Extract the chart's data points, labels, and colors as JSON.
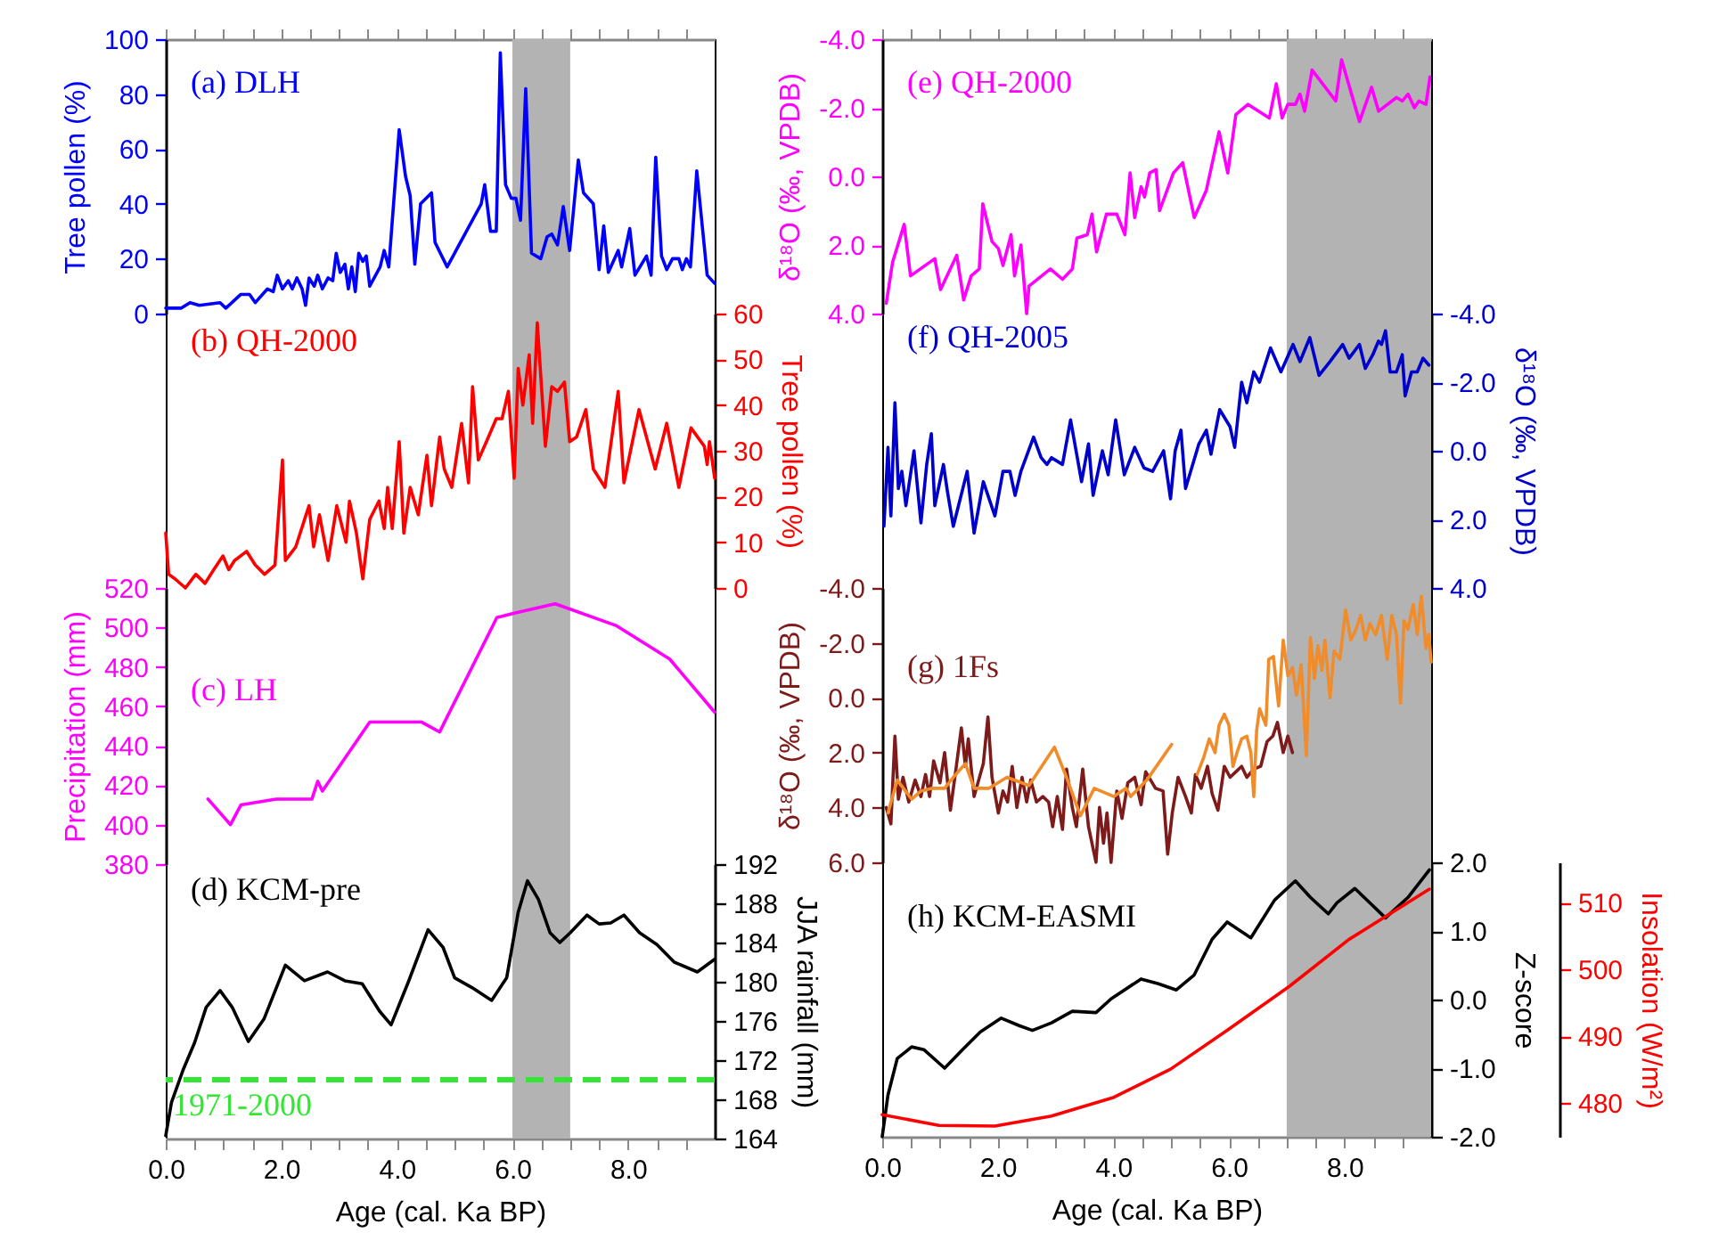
{
  "chart_data": [
    {
      "type": "line",
      "title": "(a) DLH",
      "ylabel": "Tree pollen (%)",
      "tick_labels": "y",
      "xlim": [
        0,
        9.5
      ],
      "ylim": [
        0,
        100
      ],
      "yticks": [
        0,
        20,
        40,
        60,
        80,
        100
      ],
      "xticks": [
        {
          "value": 0,
          "label": null
        },
        {
          "value": 0.5,
          "label": null
        },
        {
          "value": 1,
          "label": null
        },
        {
          "value": 1.5,
          "label": null
        },
        {
          "value": 2,
          "label": null
        },
        {
          "value": 2.5,
          "label": null
        },
        {
          "value": 3,
          "label": null
        },
        {
          "value": 3.5,
          "label": null
        },
        {
          "value": 4,
          "label": null
        },
        {
          "value": 4.5,
          "label": null
        },
        {
          "value": 5,
          "label": null
        },
        {
          "value": 5.5,
          "label": null
        },
        {
          "value": 6,
          "label": null
        },
        {
          "value": 6.5,
          "label": null
        },
        {
          "value": 7,
          "label": null
        },
        {
          "value": 7.5,
          "label": null
        },
        {
          "value": 8,
          "label": null
        },
        {
          "value": 8.5,
          "label": null
        },
        {
          "value": 9,
          "label": null
        }
      ],
      "bands": [
        {
          "axis": "x",
          "from": 6,
          "to": 7,
          "color": "#b3b3b3"
        }
      ],
      "x": [
        0,
        0.27,
        0.42,
        0.58,
        0.94,
        1.04,
        1.3,
        1.45,
        1.55,
        1.76,
        1.86,
        1.93,
        2.02,
        2.12,
        2.19,
        2.27,
        2.36,
        2.42,
        2.48,
        2.57,
        2.63,
        2.71,
        2.81,
        2.89,
        2.95,
        3.02,
        3.1,
        3.16,
        3.22,
        3.28,
        3.34,
        3.41,
        3.47,
        3.53,
        3.71,
        3.78,
        3.86,
        4.04,
        4.15,
        4.23,
        4.31,
        4.41,
        4.6,
        4.66,
        4.87,
        5.46,
        5.52,
        5.62,
        5.72,
        5.79,
        5.88,
        5.98,
        6.06,
        6.14,
        6.23,
        6.33,
        6.49,
        6.6,
        6.68,
        6.78,
        6.88,
        6.99,
        7.14,
        7.23,
        7.4,
        7.5,
        7.58,
        7.66,
        7.83,
        7.89,
        8.03,
        8.12,
        8.32,
        8.4,
        8.48,
        8.58,
        8.67,
        8.77,
        8.88,
        8.94,
        9.01,
        9.08,
        9.19,
        9.37,
        9.5
      ],
      "series": [
        {
          "color": "#0000ff",
          "axis": "y",
          "values": [
            2,
            2,
            4,
            3,
            4,
            2,
            7,
            7,
            4,
            9,
            8,
            14,
            9,
            12,
            9,
            13,
            9,
            3,
            13,
            10,
            14,
            9,
            13,
            12,
            22,
            15,
            18,
            9,
            17,
            8,
            22,
            19,
            21,
            10,
            17,
            23,
            17,
            67,
            50,
            43,
            18,
            40,
            44,
            26,
            17,
            40,
            47,
            30,
            30,
            95,
            47,
            42,
            42,
            34,
            82,
            22,
            20,
            28,
            29,
            25,
            39,
            23,
            56,
            44,
            40,
            16,
            32,
            15,
            23,
            17,
            31,
            14,
            21,
            14,
            57,
            21,
            16,
            20,
            20,
            16,
            20,
            17,
            52,
            14,
            11
          ]
        }
      ]
    },
    {
      "type": "line",
      "title": "(b) QH-2000",
      "y2label": "Tree pollen (%)",
      "tick_labels": "y2",
      "xlim": [
        0,
        9.5
      ],
      "y2lim": [
        0,
        60
      ],
      "y2ticks": [
        0,
        10,
        20,
        30,
        40,
        50,
        60
      ],
      "bands": [
        {
          "axis": "x",
          "from": 6,
          "to": 7,
          "color": "#b3b3b3"
        }
      ],
      "x": [
        0,
        0.05,
        0.16,
        0.34,
        0.52,
        0.68,
        0.83,
        0.99,
        1.09,
        1.19,
        1.4,
        1.55,
        1.71,
        1.89,
        2.02,
        2.07,
        2.25,
        2.48,
        2.56,
        2.66,
        2.81,
        2.96,
        3.12,
        3.18,
        3.3,
        3.41,
        3.53,
        3.69,
        3.78,
        3.84,
        3.92,
        4.04,
        4.12,
        4.23,
        4.37,
        4.52,
        4.6,
        4.74,
        4.82,
        4.95,
        5.12,
        5.24,
        5.31,
        5.41,
        5.55,
        5.72,
        5.82,
        5.93,
        6.03,
        6.1,
        6.18,
        6.29,
        6.35,
        6.43,
        6.57,
        6.68,
        6.78,
        6.9,
        6.99,
        7.11,
        7.27,
        7.4,
        7.6,
        7.83,
        7.93,
        8.19,
        8.47,
        8.67,
        8.88,
        9.09,
        9.32,
        9.37,
        9.41,
        9.5
      ],
      "series": [
        {
          "color": "#ff0000",
          "axis": "y2",
          "values": [
            12,
            3,
            2,
            0,
            3,
            1,
            4,
            7,
            4,
            6,
            8,
            5,
            3,
            5,
            28,
            6,
            9,
            18,
            9,
            16,
            6,
            18,
            10,
            19,
            12,
            2,
            15,
            19,
            13,
            22,
            13,
            32,
            12,
            22,
            16,
            29,
            18,
            33,
            26,
            22,
            36,
            23,
            44,
            28,
            32,
            37,
            37,
            43,
            24,
            48,
            40,
            51,
            36,
            58,
            31,
            44,
            43,
            45,
            32,
            33,
            39,
            26,
            22,
            43,
            23,
            39,
            26,
            36,
            22,
            35,
            31,
            27,
            32,
            24
          ]
        }
      ]
    },
    {
      "type": "line",
      "title": "(c) LH",
      "ylabel": "Precipitation (mm)",
      "tick_labels": "y",
      "xlim": [
        0,
        9.5
      ],
      "ylim": [
        380,
        520
      ],
      "yticks": [
        380,
        400,
        420,
        440,
        460,
        480,
        500,
        520
      ],
      "bands": [
        {
          "axis": "x",
          "from": 6,
          "to": 7,
          "color": "#b3b3b3"
        }
      ],
      "x": [
        0.73,
        1.12,
        1.3,
        1.91,
        2.53,
        2.63,
        2.71,
        3.53,
        4.43,
        4.74,
        5.73,
        6.0,
        6.74,
        7.79,
        8.72,
        9.5
      ],
      "series": [
        {
          "color": "#ff00ff",
          "axis": "y",
          "values": [
            413,
            400,
            410,
            413,
            413,
            422,
            417,
            452,
            452,
            447,
            505,
            507,
            512,
            501,
            484,
            457
          ]
        }
      ]
    },
    {
      "type": "line",
      "title": "(d) KCM-pre",
      "xlabel": "Age (cal. Ka BP)",
      "y2label": "JJA rainfall (mm)",
      "xlim": [
        0,
        9.5
      ],
      "y2lim": [
        164,
        192
      ],
      "y2ticks": [
        164,
        168,
        172,
        176,
        180,
        184,
        188,
        192
      ],
      "xticks": [
        {
          "value": 0,
          "label": "0.0"
        },
        {
          "value": 0.5,
          "label": null
        },
        {
          "value": 1,
          "label": null
        },
        {
          "value": 1.5,
          "label": null
        },
        {
          "value": 2,
          "label": "2.0"
        },
        {
          "value": 2.5,
          "label": null
        },
        {
          "value": 3,
          "label": null
        },
        {
          "value": 3.5,
          "label": null
        },
        {
          "value": 4,
          "label": "4.0"
        },
        {
          "value": 4.5,
          "label": null
        },
        {
          "value": 5,
          "label": null
        },
        {
          "value": 5.5,
          "label": null
        },
        {
          "value": 6,
          "label": "6.0"
        },
        {
          "value": 6.5,
          "label": null
        },
        {
          "value": 7,
          "label": null
        },
        {
          "value": 7.5,
          "label": null
        },
        {
          "value": 8,
          "label": "8.0"
        },
        {
          "value": 8.5,
          "label": null
        },
        {
          "value": 9,
          "label": null
        }
      ],
      "bands": [
        {
          "axis": "x",
          "from": 6,
          "to": 7,
          "color": "#b3b3b3"
        }
      ],
      "ref_lines": [
        {
          "axis": "y2",
          "value": 170,
          "color": "#33e633",
          "line_style": "dashed"
        }
      ],
      "annotations": [
        "1971-2000"
      ],
      "x": [
        0,
        0.1,
        0.3,
        0.5,
        0.7,
        0.94,
        1.15,
        1.43,
        1.7,
        2.07,
        2.4,
        2.8,
        3.1,
        3.4,
        3.7,
        3.9,
        4.2,
        4.54,
        4.8,
        5.0,
        5.3,
        5.64,
        5.9,
        6.1,
        6.26,
        6.45,
        6.65,
        6.82,
        7.0,
        7.29,
        7.5,
        7.7,
        7.93,
        8.2,
        8.5,
        8.8,
        9.2,
        9.5
      ],
      "series": [
        {
          "color": "#000000",
          "axis": "y2",
          "values": [
            164.3,
            167.7,
            171,
            173.8,
            177.4,
            179.1,
            177.4,
            173.9,
            176.2,
            181.7,
            180.1,
            181,
            180.1,
            179.8,
            177,
            175.6,
            180,
            185.3,
            183.5,
            180.4,
            179.4,
            178.1,
            180.4,
            187.1,
            190.3,
            188.4,
            185,
            184,
            185,
            186.8,
            185.9,
            186,
            186.8,
            185,
            183.8,
            182,
            181,
            182.3
          ]
        }
      ]
    },
    {
      "type": "line",
      "title": "(e) QH-2000",
      "ylabel": "δ¹⁸O (‰, VPDB)",
      "tick_labels": "y",
      "xlim": [
        0,
        9.5
      ],
      "ylim": [
        4,
        -4
      ],
      "yticks": [
        {
          "value": -4,
          "label": "-4.0"
        },
        {
          "value": -2,
          "label": "-2.0"
        },
        {
          "value": 0,
          "label": "0.0"
        },
        {
          "value": 2,
          "label": "2.0"
        },
        {
          "value": 4,
          "label": "4.0"
        }
      ],
      "xticks": [
        {
          "value": 0,
          "label": null
        },
        {
          "value": 0.5,
          "label": null
        },
        {
          "value": 1,
          "label": null
        },
        {
          "value": 1.5,
          "label": null
        },
        {
          "value": 2,
          "label": null
        },
        {
          "value": 2.5,
          "label": null
        },
        {
          "value": 3,
          "label": null
        },
        {
          "value": 3.5,
          "label": null
        },
        {
          "value": 4,
          "label": null
        },
        {
          "value": 4.5,
          "label": null
        },
        {
          "value": 5,
          "label": null
        },
        {
          "value": 5.5,
          "label": null
        },
        {
          "value": 6,
          "label": null
        },
        {
          "value": 6.5,
          "label": null
        },
        {
          "value": 7,
          "label": null
        },
        {
          "value": 7.5,
          "label": null
        },
        {
          "value": 8,
          "label": null
        },
        {
          "value": 8.5,
          "label": null
        },
        {
          "value": 9,
          "label": null
        }
      ],
      "bands": [
        {
          "axis": "x",
          "from": 7,
          "to": 9.5,
          "color": "#b3b3b3"
        }
      ],
      "x": [
        0.07,
        0.18,
        0.38,
        0.49,
        0.91,
        1.01,
        1.29,
        1.41,
        1.54,
        1.68,
        1.74,
        1.9,
        2.01,
        2.09,
        2.23,
        2.29,
        2.4,
        2.5,
        2.54,
        2.91,
        3.12,
        3.29,
        3.37,
        3.55,
        3.63,
        3.71,
        3.88,
        4.06,
        4.2,
        4.29,
        4.37,
        4.48,
        4.54,
        4.63,
        4.74,
        4.8,
        5.04,
        5.2,
        5.4,
        5.61,
        5.83,
        5.98,
        6.12,
        6.33,
        6.7,
        6.82,
        6.92,
        7.02,
        7.15,
        7.23,
        7.31,
        7.44,
        7.85,
        7.95,
        8.26,
        8.47,
        8.59,
        8.9,
        9.0,
        9.1,
        9.21,
        9.29,
        9.41,
        9.48
      ],
      "series": [
        {
          "color": "#ff00ff",
          "axis": "y",
          "values": [
            3.7,
            2.5,
            1.4,
            2.9,
            2.4,
            3.3,
            2.3,
            3.6,
            2.9,
            2.7,
            0.8,
            1.9,
            2.1,
            2.6,
            1.7,
            2.9,
            2.0,
            4.0,
            3.2,
            2.7,
            3.0,
            2.7,
            1.8,
            1.7,
            1.1,
            2.2,
            1.1,
            1.1,
            1.7,
            -0.1,
            1.2,
            0.3,
            0.6,
            -0.1,
            -0.2,
            1.0,
            -0.1,
            -0.4,
            1.2,
            0.4,
            -1.3,
            -0.1,
            -1.8,
            -2.1,
            -1.7,
            -2.7,
            -1.7,
            -2.1,
            -2.1,
            -2.4,
            -1.9,
            -3.1,
            -2.2,
            -3.4,
            -1.6,
            -2.6,
            -1.9,
            -2.3,
            -2.2,
            -2.4,
            -2.0,
            -2.2,
            -2.1,
            -2.9
          ]
        }
      ]
    },
    {
      "type": "line",
      "title": "(f) QH-2005",
      "y2label": "δ¹⁸O (‰, VPDB)",
      "tick_labels": "y2",
      "xlim": [
        0,
        9.5
      ],
      "y2lim": [
        4,
        -4
      ],
      "y2ticks": [
        {
          "value": -4,
          "label": "-4.0"
        },
        {
          "value": -2,
          "label": "-2.0"
        },
        {
          "value": 0,
          "label": "0.0"
        },
        {
          "value": 2,
          "label": "2.0"
        },
        {
          "value": 4,
          "label": "4.0"
        }
      ],
      "bands": [
        {
          "axis": "x",
          "from": 7,
          "to": 9.5,
          "color": "#b3b3b3"
        }
      ],
      "x": [
        0.03,
        0.1,
        0.15,
        0.22,
        0.28,
        0.34,
        0.41,
        0.55,
        0.67,
        0.77,
        0.85,
        0.91,
        1.06,
        1.13,
        1.23,
        1.47,
        1.59,
        1.75,
        1.95,
        2.09,
        2.21,
        2.3,
        2.4,
        2.62,
        2.75,
        2.85,
        2.93,
        3.12,
        3.26,
        3.45,
        3.57,
        3.65,
        3.81,
        3.91,
        4.04,
        4.19,
        4.37,
        4.53,
        4.68,
        4.87,
        4.99,
        5.07,
        5.17,
        5.25,
        5.48,
        5.61,
        5.69,
        5.84,
        6.02,
        6.1,
        6.22,
        6.31,
        6.43,
        6.53,
        6.72,
        6.9,
        7.11,
        7.23,
        7.4,
        7.56,
        7.75,
        7.97,
        8.08,
        8.26,
        8.36,
        8.49,
        8.59,
        8.64,
        8.71,
        8.79,
        8.9,
        9.0,
        9.05,
        9.16,
        9.26,
        9.36,
        9.46
      ],
      "series": [
        {
          "color": "#0000cc",
          "axis": "y2",
          "values": [
            2.2,
            -0.1,
            1.9,
            -1.4,
            1.1,
            0.6,
            1.6,
            0.0,
            2.1,
            0.4,
            -0.5,
            1.6,
            0.4,
            1.2,
            2.2,
            0.6,
            2.4,
            0.9,
            1.9,
            0.6,
            0.6,
            1.3,
            0.6,
            -0.4,
            0.2,
            0.4,
            0.2,
            0.4,
            -0.9,
            0.9,
            -0.2,
            1.3,
            0.0,
            0.7,
            -0.9,
            0.7,
            -0.1,
            0.5,
            0.6,
            0.0,
            1.4,
            0.0,
            -0.6,
            1.1,
            -0.2,
            -0.6,
            0.1,
            -1.2,
            -0.7,
            -0.1,
            -2.0,
            -1.4,
            -2.3,
            -2.0,
            -3.0,
            -2.3,
            -3.1,
            -2.6,
            -3.3,
            -2.2,
            -2.6,
            -3.1,
            -2.7,
            -3.1,
            -2.4,
            -2.8,
            -3.2,
            -3.1,
            -3.5,
            -2.3,
            -2.3,
            -2.8,
            -1.6,
            -2.3,
            -2.3,
            -2.7,
            -2.5
          ]
        }
      ]
    },
    {
      "type": "line",
      "title": "(g) 1Fs",
      "ylabel": "δ¹⁸O (‰, VPDB)",
      "tick_labels": "y",
      "xlim": [
        0,
        9.5
      ],
      "ylim": [
        6,
        -4
      ],
      "yticks": [
        {
          "value": -4,
          "label": "-4.0"
        },
        {
          "value": -2,
          "label": "-2.0"
        },
        {
          "value": 0,
          "label": "0.0"
        },
        {
          "value": 2,
          "label": "2.0"
        },
        {
          "value": 4,
          "label": "4.0"
        },
        {
          "value": 6,
          "label": "6.0"
        }
      ],
      "bands": [
        {
          "axis": "x",
          "from": 7,
          "to": 9.5,
          "color": "#b3b3b3"
        }
      ],
      "series": [
        {
          "color": "#7f1a1a",
          "axis": "y",
          "x": [
            0.07,
            0.15,
            0.22,
            0.28,
            0.36,
            0.46,
            0.57,
            0.67,
            0.75,
            0.82,
            0.89,
            1.0,
            1.08,
            1.18,
            1.27,
            1.37,
            1.44,
            1.49,
            1.59,
            1.75,
            1.83,
            1.9,
            2.01,
            2.09,
            2.17,
            2.25,
            2.33,
            2.42,
            2.5,
            2.57,
            2.67,
            2.78,
            2.88,
            2.95,
            3.03,
            3.12,
            3.19,
            3.29,
            3.36,
            3.47,
            3.57,
            3.7,
            3.76,
            3.83,
            3.89,
            3.96,
            4.06,
            4.15,
            4.25,
            4.37,
            4.48,
            4.56,
            4.73,
            4.86,
            4.94,
            5.02,
            5.12,
            5.25,
            5.35,
            5.42,
            5.52,
            5.63,
            5.71,
            5.81,
            5.92,
            6.02,
            6.12,
            6.22,
            6.31,
            6.43,
            6.55,
            6.66,
            6.76,
            6.84,
            6.94,
            7.02,
            7.1
          ],
          "values": [
            4.0,
            4.6,
            1.4,
            3.7,
            2.9,
            3.8,
            3.0,
            3.6,
            2.8,
            3.6,
            2.3,
            3.1,
            2.0,
            4.1,
            2.7,
            1.1,
            2.5,
            1.5,
            3.6,
            2.4,
            0.7,
            2.9,
            4.2,
            3.4,
            3.8,
            2.5,
            4.0,
            2.9,
            3.8,
            3.0,
            3.8,
            3.6,
            3.8,
            4.7,
            3.6,
            4.8,
            2.6,
            4.0,
            4.7,
            2.6,
            4.7,
            6.0,
            4.0,
            5.3,
            4.2,
            6.0,
            3.4,
            4.4,
            3.1,
            2.9,
            3.9,
            2.7,
            3.3,
            3.4,
            5.7,
            4.2,
            2.9,
            3.6,
            4.2,
            2.8,
            3.3,
            2.5,
            3.5,
            4.1,
            2.5,
            2.9,
            2.7,
            2.5,
            2.9,
            2.6,
            2.5,
            1.6,
            1.4,
            0.9,
            2.0,
            1.4,
            2.0
          ]
        },
        {
          "color": "#f08c2a",
          "axis": "y",
          "x": [
            0.1,
            0.26,
            0.51,
            0.67,
            0.87,
            1.08,
            1.23,
            1.44,
            1.59,
            1.85,
            2.16,
            2.54,
            2.98,
            3.19,
            3.43,
            3.67,
            4.01,
            4.22,
            4.3,
            4.58,
            5.01,
            5.2,
            5.45,
            5.56,
            5.66,
            5.76,
            5.83,
            5.92,
            6.0,
            6.07,
            6.14,
            6.22,
            6.31,
            6.38,
            6.43,
            6.48,
            6.53,
            6.64,
            6.69,
            6.77,
            6.86,
            6.94,
            7.02,
            7.1,
            7.17,
            7.25,
            7.34,
            7.41,
            7.48,
            7.54,
            7.61,
            7.66,
            7.75,
            7.82,
            7.92,
            8.02,
            8.11,
            8.2,
            8.28,
            8.36,
            8.44,
            8.54,
            8.64,
            8.74,
            8.82,
            8.9,
            8.97,
            9.03,
            9.1,
            9.19,
            9.26,
            9.33,
            9.41,
            9.46,
            9.5
          ],
          "values": [
            4.2,
            3.0,
            3.7,
            3.4,
            3.3,
            3.3,
            2.9,
            2.4,
            3.3,
            3.3,
            2.9,
            3.2,
            1.8,
            2.9,
            4.3,
            3.3,
            3.6,
            3.3,
            3.6,
            3.0,
            1.7,
            null,
            2.8,
            2.2,
            1.5,
            2.0,
            1.0,
            0.6,
            1.0,
            2.5,
            2.0,
            1.5,
            1.4,
            2.0,
            3.6,
            1.2,
            0.4,
            1.0,
            -1.4,
            -1.5,
            0.3,
            -2.1,
            -0.8,
            -1.1,
            -0.1,
            -1.2,
            2.1,
            -2.2,
            -0.7,
            -1.9,
            -1.0,
            -2.1,
            0.0,
            -1.7,
            -1.4,
            -3.2,
            -2.1,
            -2.5,
            -3.0,
            -2.1,
            -2.7,
            -2.3,
            -3.0,
            -1.4,
            -3.0,
            -2.3,
            0.2,
            -2.8,
            -2.5,
            -3.4,
            -2.3,
            -3.7,
            -1.8,
            -2.3,
            -1.3
          ]
        }
      ]
    },
    {
      "type": "line",
      "title": "(h) KCM-EASMI",
      "xlabel": "Age (cal. Ka BP)",
      "y2label": "Z-score",
      "y3label": "Insolation (W/m²)",
      "xlim": [
        0,
        9.5
      ],
      "y2lim": [
        -2,
        2
      ],
      "y2ticks": [
        {
          "value": -2,
          "label": "-2.0"
        },
        {
          "value": -1,
          "label": "-1.0"
        },
        {
          "value": 0,
          "label": "0.0"
        },
        {
          "value": 1,
          "label": "1.0"
        },
        {
          "value": 2,
          "label": "2.0"
        }
      ],
      "y3lim": [
        475,
        516
      ],
      "y3ticks": [
        480,
        490,
        500,
        510
      ],
      "xticks": [
        {
          "value": 0,
          "label": "0.0"
        },
        {
          "value": 0.5,
          "label": null
        },
        {
          "value": 1,
          "label": null
        },
        {
          "value": 1.5,
          "label": null
        },
        {
          "value": 2,
          "label": "2.0"
        },
        {
          "value": 2.5,
          "label": null
        },
        {
          "value": 3,
          "label": null
        },
        {
          "value": 3.5,
          "label": null
        },
        {
          "value": 4,
          "label": "4.0"
        },
        {
          "value": 4.5,
          "label": null
        },
        {
          "value": 5,
          "label": null
        },
        {
          "value": 5.5,
          "label": null
        },
        {
          "value": 6,
          "label": "6.0"
        },
        {
          "value": 6.5,
          "label": null
        },
        {
          "value": 7,
          "label": null
        },
        {
          "value": 7.5,
          "label": null
        },
        {
          "value": 8,
          "label": "8.0"
        },
        {
          "value": 8.5,
          "label": null
        },
        {
          "value": 9,
          "label": null
        }
      ],
      "bands": [
        {
          "axis": "x",
          "from": 7,
          "to": 9.5,
          "color": "#b3b3b3"
        }
      ],
      "series": [
        {
          "color": "#000000",
          "axis": "y2",
          "x": [
            0,
            0.1,
            0.26,
            0.51,
            0.72,
            1.08,
            1.39,
            1.7,
            2.06,
            2.37,
            2.6,
            2.93,
            3.29,
            3.7,
            3.96,
            4.48,
            4.78,
            5.09,
            5.4,
            5.71,
            5.97,
            6.38,
            6.79,
            7.15,
            7.41,
            7.72,
            7.87,
            8.18,
            8.44,
            8.71,
            9.1,
            9.47
          ],
          "values": [
            -2.0,
            -1.39,
            -0.86,
            -0.69,
            -0.73,
            -1.0,
            -0.73,
            -0.47,
            -0.27,
            -0.38,
            -0.45,
            -0.34,
            -0.17,
            -0.19,
            0.01,
            0.3,
            0.23,
            0.14,
            0.36,
            0.88,
            1.13,
            0.9,
            1.45,
            1.73,
            1.49,
            1.25,
            1.41,
            1.62,
            1.41,
            1.19,
            1.49,
            1.89
          ]
        },
        {
          "color": "#ff0000",
          "axis": "y3",
          "x": [
            0,
            0.98,
            1.95,
            2.93,
            4.01,
            4.99,
            5.97,
            7.05,
            8.08,
            9.47
          ],
          "values": [
            478.3,
            476.7,
            476.6,
            478.1,
            480.9,
            485.1,
            490.9,
            497.5,
            504.5,
            512.0
          ]
        }
      ]
    }
  ]
}
